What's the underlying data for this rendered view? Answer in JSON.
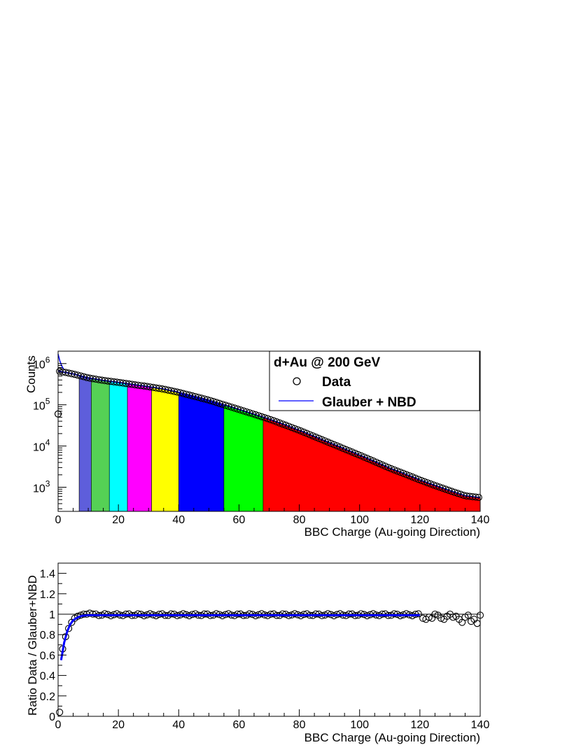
{
  "chart_data": [
    {
      "type": "scatter",
      "panel": "top",
      "yscale": "log",
      "xlim": [
        0,
        140
      ],
      "ylim": [
        260,
        2000000
      ],
      "xlabel": "BBC Charge (Au-going Direction)",
      "ylabel": "Counts",
      "x_ticks": [
        "0",
        "20",
        "40",
        "60",
        "80",
        "100",
        "120",
        "140"
      ],
      "y_ticks": [
        {
          "value": 1000,
          "base": "10",
          "exp": "3"
        },
        {
          "value": 10000,
          "base": "10",
          "exp": "4"
        },
        {
          "value": 100000,
          "base": "10",
          "exp": "5"
        },
        {
          "value": 1000000,
          "base": "10",
          "exp": "6"
        }
      ],
      "legend": {
        "title": "d+Au @ 200 GeV",
        "entries": [
          {
            "label": "Data",
            "marker": "open-circle"
          },
          {
            "label": "Glauber + NBD",
            "marker": "line",
            "color": "#0000ff"
          }
        ],
        "placement": "top-right"
      },
      "centrality_bins": [
        {
          "x0": 0,
          "x1": 7,
          "color": "#ffffff"
        },
        {
          "x0": 7,
          "x1": 11,
          "color": "#5e5edb"
        },
        {
          "x0": 11,
          "x1": 17,
          "color": "#55d155"
        },
        {
          "x0": 17,
          "x1": 23,
          "color": "#00ffff"
        },
        {
          "x0": 23,
          "x1": 31,
          "color": "#ff00ff"
        },
        {
          "x0": 31,
          "x1": 40,
          "color": "#ffff00"
        },
        {
          "x0": 40,
          "x1": 55,
          "color": "#0000ff"
        },
        {
          "x0": 55,
          "x1": 68,
          "color": "#00ff00"
        },
        {
          "x0": 68,
          "x1": 140,
          "color": "#ff0000"
        }
      ],
      "data_curve": [
        [
          0,
          660000
        ],
        [
          5,
          560000
        ],
        [
          10,
          450000
        ],
        [
          15,
          390000
        ],
        [
          20,
          350000
        ],
        [
          25,
          310000
        ],
        [
          30,
          275000
        ],
        [
          35,
          240000
        ],
        [
          40,
          200000
        ],
        [
          45,
          162000
        ],
        [
          50,
          130000
        ],
        [
          55,
          100000
        ],
        [
          60,
          77000
        ],
        [
          65,
          59000
        ],
        [
          70,
          45000
        ],
        [
          75,
          33000
        ],
        [
          80,
          24000
        ],
        [
          85,
          17000
        ],
        [
          90,
          12000
        ],
        [
          95,
          8500
        ],
        [
          100,
          6000
        ],
        [
          105,
          4200
        ],
        [
          110,
          2900
        ],
        [
          115,
          2100
        ],
        [
          120,
          1500
        ],
        [
          125,
          1100
        ],
        [
          130,
          820
        ],
        [
          135,
          620
        ],
        [
          140,
          560
        ]
      ],
      "first_point": {
        "x": 0,
        "y": 60000
      },
      "glauber_spike": [
        [
          0.0,
          1700000
        ],
        [
          0.6,
          1150000
        ],
        [
          1.3,
          850000
        ],
        [
          2,
          700000
        ]
      ]
    },
    {
      "type": "scatter",
      "panel": "bottom",
      "xlim": [
        0,
        140
      ],
      "ylim": [
        0,
        1.5
      ],
      "xlabel": "BBC Charge (Au-going Direction)",
      "ylabel": "Ratio Data / Glauber+NBD",
      "x_ticks": [
        "0",
        "20",
        "40",
        "60",
        "80",
        "100",
        "120",
        "140"
      ],
      "y_ticks": [
        "0",
        "0.2",
        "0.4",
        "0.6",
        "0.8",
        "1",
        "1.2",
        "1.4"
      ],
      "reference_line": 1,
      "ratio_curve": [
        [
          1,
          0.55
        ],
        [
          2,
          0.72
        ],
        [
          3,
          0.83
        ],
        [
          4,
          0.9
        ],
        [
          5,
          0.94
        ],
        [
          6,
          0.96
        ],
        [
          7,
          0.975
        ],
        [
          8,
          0.985
        ],
        [
          10,
          0.99
        ],
        [
          12,
          0.99
        ],
        [
          120,
          0.99
        ]
      ],
      "ratio_points": [
        [
          0.5,
          0.04
        ],
        [
          1.5,
          0.66
        ],
        [
          2.5,
          0.78
        ],
        [
          3.5,
          0.86
        ],
        [
          4.5,
          0.92
        ],
        [
          5.5,
          0.96
        ],
        [
          6.5,
          0.98
        ],
        [
          7.5,
          0.99
        ],
        [
          8.5,
          1.0
        ],
        [
          9.5,
          1.0
        ],
        [
          10.5,
          1.01
        ],
        [
          121,
          0.96
        ],
        [
          122,
          0.95
        ],
        [
          123,
          0.97
        ],
        [
          124,
          0.96
        ],
        [
          125,
          1.0
        ],
        [
          126,
          0.99
        ],
        [
          127,
          0.96
        ],
        [
          128,
          0.95
        ],
        [
          129,
          0.98
        ],
        [
          130,
          1.0
        ],
        [
          131,
          0.97
        ],
        [
          132,
          0.98
        ],
        [
          133,
          0.95
        ],
        [
          134,
          0.92
        ],
        [
          135,
          0.97
        ],
        [
          136,
          0.99
        ],
        [
          137,
          0.93
        ],
        [
          138,
          0.95
        ],
        [
          139,
          0.91
        ],
        [
          140,
          0.99
        ]
      ]
    }
  ]
}
